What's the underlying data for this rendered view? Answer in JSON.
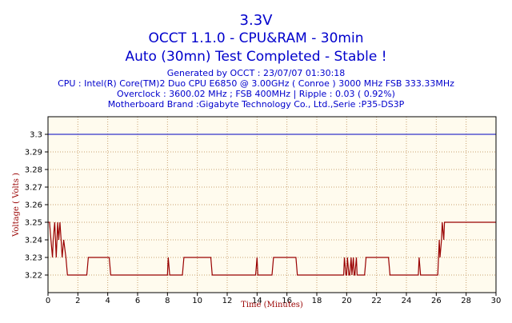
{
  "header": {
    "title": "3.3V",
    "subtitle": "OCCT 1.1.0 - CPU&RAM - 30min",
    "status": "Auto (30mn) Test Completed - Stable !",
    "info": [
      "Generated by OCCT : 23/07/07 01:30:18",
      "CPU : Intel(R) Core(TM)2 Duo CPU     E6850  @ 3.00GHz ( Conroe ) 3000 MHz FSB 333.33MHz",
      "Overclock : 3600.02 MHz ; FSB 400MHz | Ripple : 0.03 ( 0.92%)",
      "Motherboard Brand :Gigabyte Technology Co., Ltd.,Serie :P35-DS3P"
    ]
  },
  "chart_data": {
    "type": "line",
    "xlabel": "Time (Minutes)",
    "ylabel": "Voltage ( Volts )",
    "xlim": [
      0,
      30
    ],
    "ylim": [
      3.21,
      3.31
    ],
    "x_ticks": [
      0,
      2,
      4,
      6,
      8,
      10,
      12,
      14,
      16,
      18,
      20,
      22,
      24,
      26,
      28,
      30
    ],
    "y_ticks": [
      3.22,
      3.23,
      3.24,
      3.25,
      3.26,
      3.27,
      3.28,
      3.29,
      3.3
    ],
    "grid": true,
    "colors": {
      "background": "#fffbee",
      "grid": "#c8a070",
      "nominal": "#3333cc",
      "series": "#990000",
      "axis_text": "#990000"
    },
    "nominal_value": 3.3,
    "series": [
      {
        "x": [
          0,
          0.1,
          0.2,
          0.3,
          0.35,
          0.45,
          0.55,
          0.65,
          0.72,
          0.8,
          0.88,
          0.95,
          1.05,
          1.2,
          1.3,
          2.6,
          2.7,
          4.1,
          4.2,
          5.8,
          5.9,
          7.9,
          8.0,
          8.05,
          8.15,
          8.2,
          9.0,
          9.1,
          10.9,
          11.0,
          12.9,
          13.0,
          13.9,
          14.0,
          14.05,
          14.15,
          14.2,
          15.0,
          15.1,
          16.6,
          16.7,
          18.3,
          18.4,
          19.8,
          19.85,
          19.95,
          20.0,
          20.05,
          20.15,
          20.2,
          20.3,
          20.35,
          20.45,
          20.5,
          20.55,
          20.65,
          20.7,
          21.2,
          21.3,
          22.8,
          22.9,
          24.8,
          24.85,
          24.95,
          25.0,
          26.1,
          26.2,
          26.25,
          26.35,
          26.4,
          26.5,
          26.55,
          26.65,
          30
        ],
        "y": [
          3.25,
          3.25,
          3.24,
          3.23,
          3.24,
          3.25,
          3.23,
          3.25,
          3.24,
          3.25,
          3.24,
          3.23,
          3.24,
          3.23,
          3.22,
          3.22,
          3.23,
          3.23,
          3.22,
          3.22,
          3.22,
          3.22,
          3.22,
          3.23,
          3.22,
          3.22,
          3.22,
          3.23,
          3.23,
          3.22,
          3.22,
          3.22,
          3.22,
          3.23,
          3.22,
          3.22,
          3.22,
          3.22,
          3.23,
          3.23,
          3.22,
          3.22,
          3.22,
          3.22,
          3.23,
          3.22,
          3.22,
          3.23,
          3.22,
          3.22,
          3.23,
          3.22,
          3.23,
          3.22,
          3.22,
          3.23,
          3.22,
          3.22,
          3.23,
          3.23,
          3.22,
          3.22,
          3.23,
          3.22,
          3.22,
          3.22,
          3.24,
          3.23,
          3.24,
          3.25,
          3.24,
          3.25,
          3.25,
          3.25
        ]
      }
    ]
  }
}
